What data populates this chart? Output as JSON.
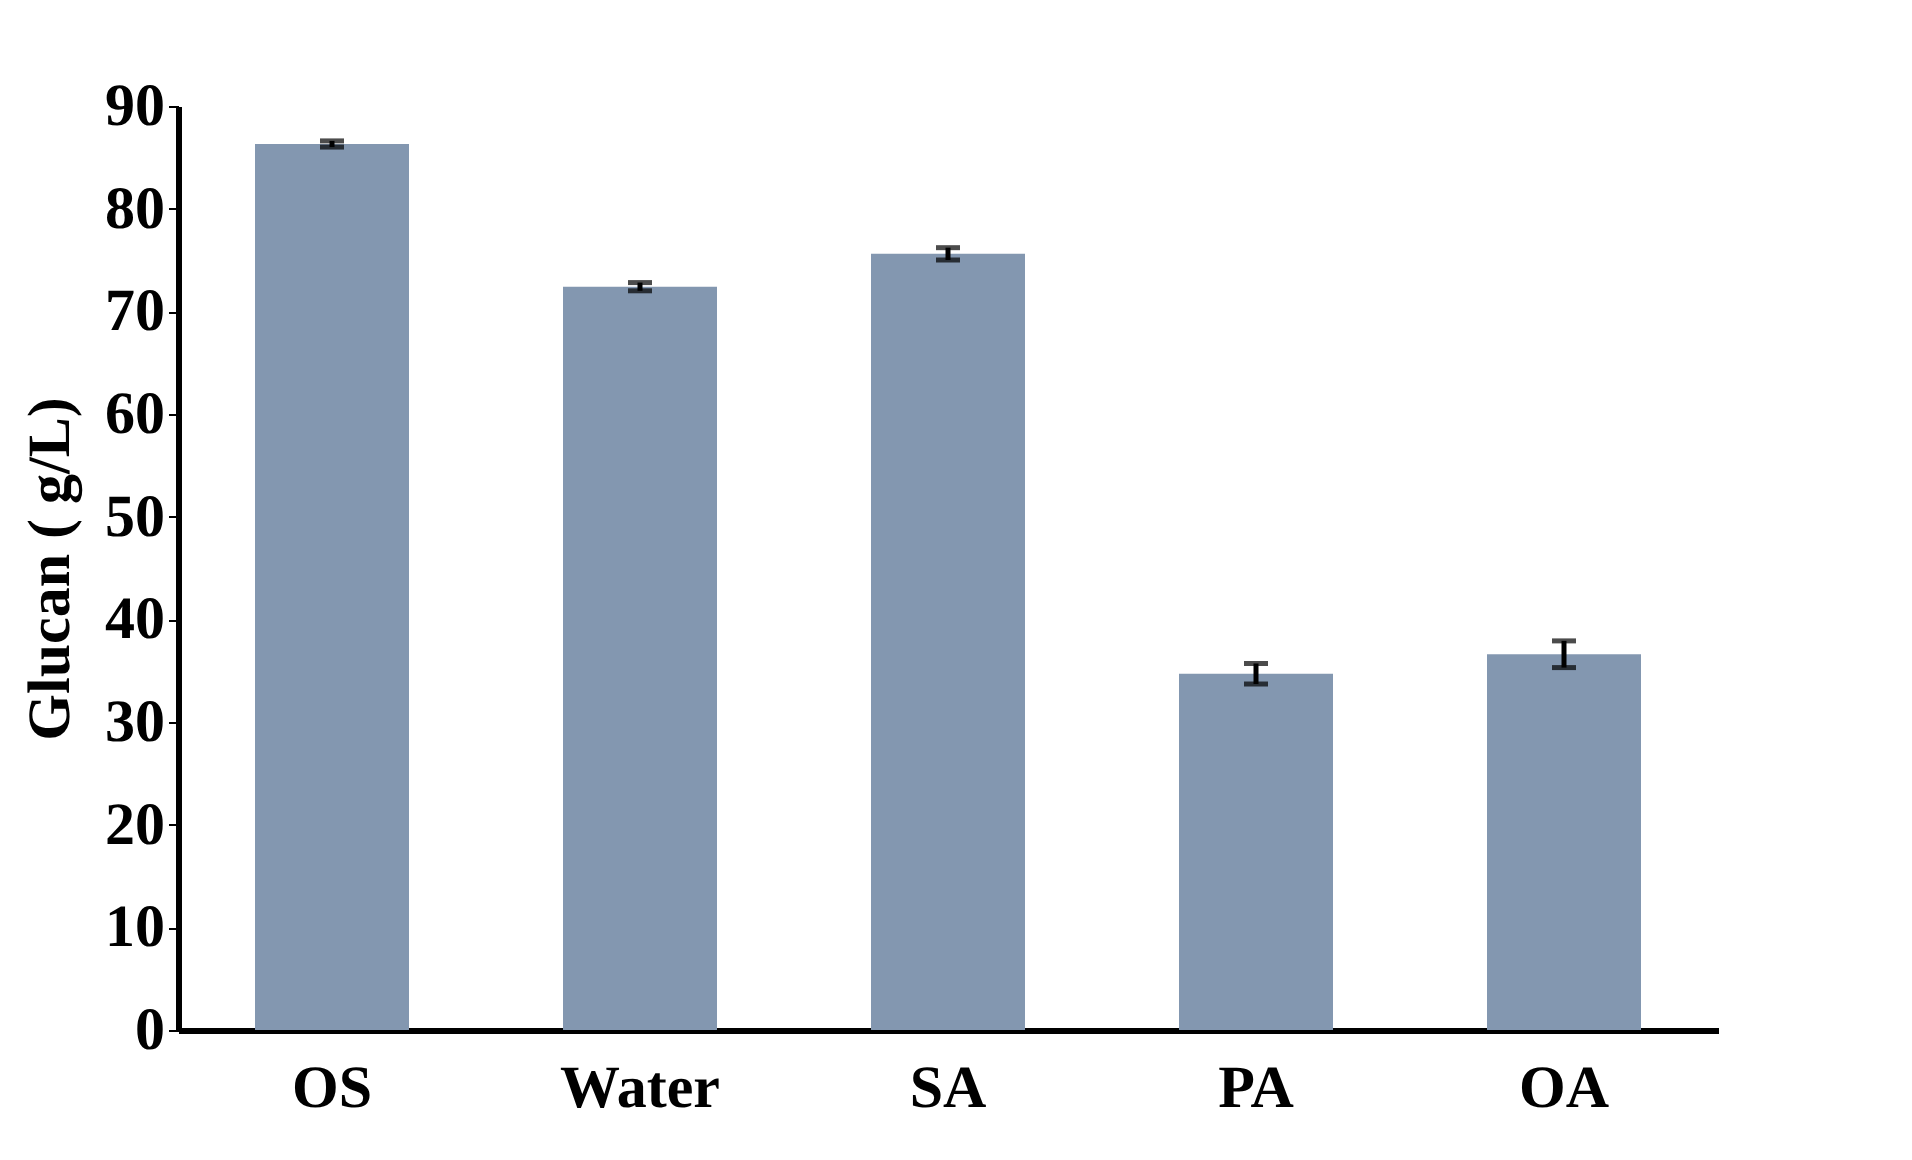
{
  "chart_data": {
    "type": "bar",
    "ylabel": "Glucan ( g/L)",
    "categories": [
      "OS",
      "Water",
      "SA",
      "PA",
      "OA"
    ],
    "values": [
      86.3,
      72.4,
      75.6,
      34.7,
      36.6
    ],
    "errors": [
      0.3,
      0.4,
      0.6,
      1.0,
      1.3
    ],
    "color": "#8397b0",
    "ylim": [
      0,
      90
    ],
    "yticks": [
      0,
      10,
      20,
      30,
      40,
      50,
      60,
      70,
      80,
      90
    ],
    "grid": false
  }
}
